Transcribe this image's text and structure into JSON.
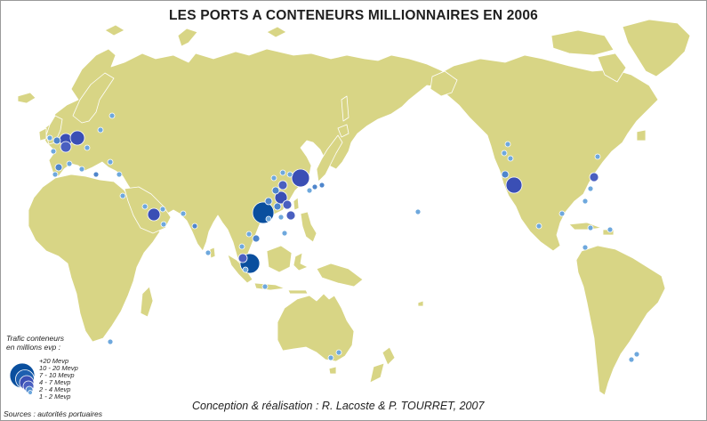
{
  "title": "LES PORTS A CONTENEURS MILLIONNAIRES EN 2006",
  "legend": {
    "title_line1": "Trafic conteneurs",
    "title_line2": "en millions evp :",
    "classes": [
      {
        "label": "+20 Mevp",
        "color": "#0a4f9e"
      },
      {
        "label": "10 - 20 Mevp",
        "color": "#1e5fb0"
      },
      {
        "label": "7 - 10 Mevp",
        "color": "#3a4fb5"
      },
      {
        "label": "4 - 7 Mevp",
        "color": "#4a5fc0"
      },
      {
        "label": "2 - 4 Mevp",
        "color": "#4f86cc"
      },
      {
        "label": "1 - 2 Mevp",
        "color": "#6ea8dd"
      }
    ]
  },
  "credit": "Conception & réalisation :  R. Lacoste & P. TOURRET, 2007",
  "source": "Sources : autorités portuaires",
  "colors": {
    "land": "#d8d585",
    "land_border": "#ffffff",
    "sea": "#ffffff"
  }
}
